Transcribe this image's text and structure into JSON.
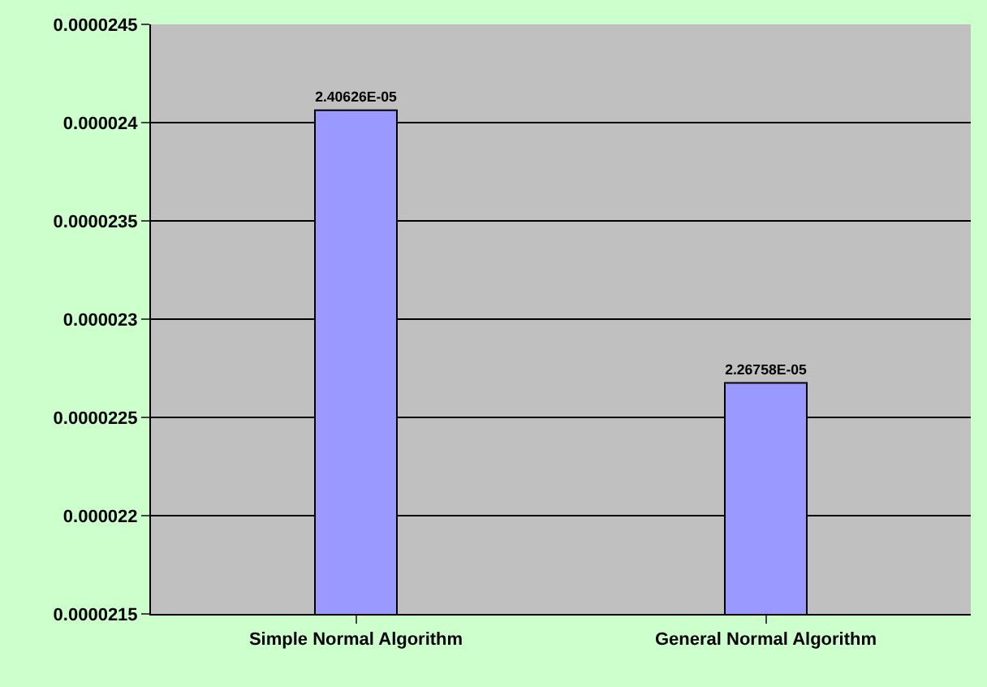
{
  "chart_data": {
    "type": "bar",
    "categories": [
      "Simple Normal Algorithm",
      "General Normal Algorithm"
    ],
    "values": [
      2.40626e-05,
      2.26758e-05
    ],
    "value_labels": [
      "2.40626E-05",
      "2.26758E-05"
    ],
    "color": "#9999ff",
    "ylim": [
      2.15e-05,
      2.45e-05
    ],
    "yticks": [
      {
        "value": 2.15e-05,
        "label": "0.0000215"
      },
      {
        "value": 2.2e-05,
        "label": "0.000022"
      },
      {
        "value": 2.25e-05,
        "label": "0.0000225"
      },
      {
        "value": 2.3e-05,
        "label": "0.000023"
      },
      {
        "value": 2.35e-05,
        "label": "0.0000235"
      },
      {
        "value": 2.4e-05,
        "label": "0.000024"
      },
      {
        "value": 2.45e-05,
        "label": "0.0000245"
      }
    ],
    "grid": "y",
    "legend": false
  }
}
